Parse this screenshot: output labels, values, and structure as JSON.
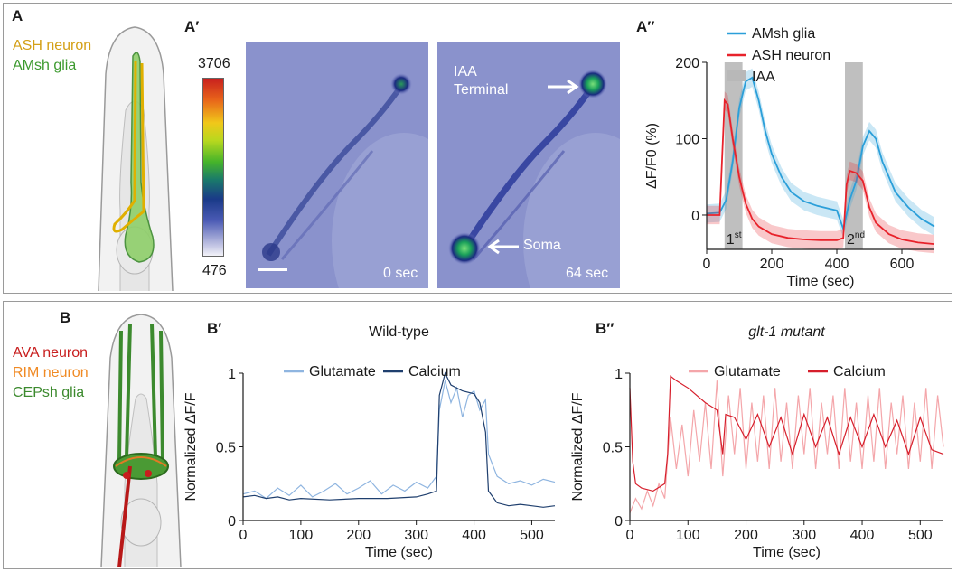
{
  "panelA": {
    "labels": {
      "a": "A",
      "a1": "A′",
      "a2": "A″"
    },
    "cartoon_labels": [
      {
        "text": "ASH neuron",
        "color": "#d4a017"
      },
      {
        "text": "AMsh glia",
        "color": "#3c9a2e"
      }
    ],
    "colorbar": {
      "max": "3706",
      "min": "476"
    },
    "image1": {
      "time": "0 sec"
    },
    "image2": {
      "time": "64 sec",
      "arrow1": "IAA\nTerminal",
      "arrow1_line1": "IAA",
      "arrow1_line2": "Terminal",
      "arrow2": "Soma"
    }
  },
  "panelB": {
    "labels": {
      "b": "B",
      "b1": "B′",
      "b2": "B″"
    },
    "cartoon_labels": [
      {
        "text": "AVA neuron",
        "color": "#c81e1e"
      },
      {
        "text": "RIM neuron",
        "color": "#f08a24"
      },
      {
        "text": "CEPsh glia",
        "color": "#3c8a2e"
      }
    ]
  },
  "chart_data": [
    {
      "id": "A2",
      "type": "line",
      "title": "",
      "xlabel": "Time (sec)",
      "ylabel": "ΔF/F0 (%)",
      "xlim": [
        0,
        700
      ],
      "ylim": [
        -45,
        200
      ],
      "xticks": [
        0,
        200,
        400,
        600
      ],
      "yticks": [
        0,
        100,
        200
      ],
      "legend": "top-right",
      "stimulus": {
        "name": "IAA",
        "intervals": [
          [
            55,
            110
          ],
          [
            425,
            480
          ]
        ],
        "color": "#b8b8b8"
      },
      "annotations": [
        {
          "text": "1",
          "sup": "st",
          "x": 55
        },
        {
          "text": "2",
          "sup": "nd",
          "x": 425
        }
      ],
      "series": [
        {
          "name": "AMsh glia",
          "color": "#2b9fd9",
          "band": true,
          "x": [
            0,
            40,
            60,
            80,
            100,
            120,
            140,
            160,
            180,
            200,
            230,
            260,
            300,
            340,
            380,
            400,
            420,
            440,
            460,
            480,
            500,
            520,
            540,
            580,
            620,
            660,
            700
          ],
          "y": [
            2,
            3,
            20,
            70,
            140,
            175,
            180,
            150,
            110,
            80,
            50,
            30,
            18,
            12,
            8,
            6,
            -18,
            20,
            45,
            90,
            110,
            100,
            70,
            30,
            10,
            -5,
            -15
          ]
        },
        {
          "name": "ASH neuron",
          "color": "#e8222b",
          "band": true,
          "x": [
            0,
            40,
            55,
            65,
            80,
            100,
            120,
            140,
            160,
            200,
            250,
            300,
            350,
            400,
            420,
            430,
            440,
            460,
            480,
            500,
            520,
            560,
            600,
            650,
            700
          ],
          "y": [
            0,
            0,
            150,
            145,
            100,
            50,
            15,
            -5,
            -15,
            -25,
            -30,
            -32,
            -33,
            -33,
            -30,
            40,
            58,
            55,
            45,
            10,
            -10,
            -25,
            -32,
            -36,
            -38
          ]
        }
      ]
    },
    {
      "id": "B1",
      "type": "line",
      "title": "Wild-type",
      "xlabel": "Time (sec)",
      "ylabel": "Normalized ΔF/F",
      "xlim": [
        0,
        540
      ],
      "ylim": [
        0,
        1
      ],
      "xticks": [
        0,
        100,
        200,
        300,
        400,
        500
      ],
      "yticks": [
        0,
        0.5,
        1
      ],
      "legend": "top",
      "series": [
        {
          "name": "Glutamate",
          "color": "#8fb5e0",
          "x": [
            0,
            20,
            40,
            60,
            80,
            100,
            120,
            140,
            160,
            180,
            200,
            220,
            240,
            260,
            280,
            300,
            320,
            335,
            340,
            350,
            360,
            370,
            380,
            390,
            400,
            410,
            420,
            425,
            440,
            460,
            480,
            500,
            520,
            540
          ],
          "y": [
            0.18,
            0.2,
            0.15,
            0.22,
            0.17,
            0.24,
            0.16,
            0.2,
            0.25,
            0.18,
            0.22,
            0.27,
            0.18,
            0.24,
            0.2,
            0.26,
            0.22,
            0.3,
            0.75,
            0.95,
            0.8,
            0.9,
            0.7,
            0.85,
            0.88,
            0.75,
            0.82,
            0.45,
            0.3,
            0.25,
            0.27,
            0.24,
            0.28,
            0.26
          ]
        },
        {
          "name": "Calcium",
          "color": "#1f3f6e",
          "x": [
            0,
            20,
            40,
            60,
            80,
            100,
            150,
            200,
            250,
            300,
            320,
            335,
            340,
            350,
            360,
            380,
            400,
            410,
            420,
            425,
            440,
            460,
            480,
            500,
            520,
            540
          ],
          "y": [
            0.16,
            0.17,
            0.15,
            0.16,
            0.14,
            0.15,
            0.14,
            0.15,
            0.15,
            0.16,
            0.18,
            0.2,
            0.85,
            1.0,
            0.92,
            0.88,
            0.86,
            0.8,
            0.6,
            0.2,
            0.12,
            0.1,
            0.11,
            0.1,
            0.09,
            0.1
          ]
        }
      ]
    },
    {
      "id": "B2",
      "type": "line",
      "title": "glt-1 mutant",
      "xlabel": "Time (sec)",
      "ylabel": "Normalized ΔF/F",
      "xlim": [
        0,
        540
      ],
      "ylim": [
        0,
        1
      ],
      "xticks": [
        0,
        100,
        200,
        300,
        400,
        500
      ],
      "yticks": [
        0,
        0.5,
        1
      ],
      "legend": "top",
      "series": [
        {
          "name": "Glutamate",
          "color": "#f4a6aa",
          "x": [
            0,
            10,
            20,
            30,
            40,
            50,
            60,
            70,
            80,
            90,
            100,
            110,
            120,
            130,
            140,
            150,
            160,
            170,
            180,
            190,
            200,
            210,
            220,
            230,
            240,
            250,
            260,
            270,
            280,
            290,
            300,
            310,
            320,
            330,
            340,
            350,
            360,
            370,
            380,
            390,
            400,
            410,
            420,
            430,
            440,
            450,
            460,
            470,
            480,
            490,
            500,
            510,
            520,
            530,
            540
          ],
          "y": [
            0.05,
            0.15,
            0.08,
            0.2,
            0.1,
            0.25,
            0.15,
            0.7,
            0.35,
            0.65,
            0.3,
            0.75,
            0.4,
            0.8,
            0.35,
            0.95,
            0.3,
            0.85,
            0.45,
            0.9,
            0.35,
            0.8,
            0.4,
            0.85,
            0.35,
            0.9,
            0.4,
            0.8,
            0.35,
            0.85,
            0.45,
            0.9,
            0.35,
            0.8,
            0.45,
            0.85,
            0.35,
            0.9,
            0.4,
            0.8,
            0.35,
            0.85,
            0.4,
            0.9,
            0.35,
            0.8,
            0.45,
            0.85,
            0.35,
            0.8,
            0.4,
            0.9,
            0.35,
            0.85,
            0.5
          ]
        },
        {
          "name": "Calcium",
          "color": "#d61e2b",
          "x": [
            0,
            5,
            10,
            20,
            40,
            60,
            65,
            70,
            80,
            100,
            130,
            150,
            160,
            165,
            180,
            200,
            220,
            240,
            260,
            280,
            300,
            320,
            340,
            360,
            380,
            400,
            420,
            440,
            460,
            480,
            500,
            520,
            540
          ],
          "y": [
            0.9,
            0.4,
            0.25,
            0.22,
            0.2,
            0.25,
            0.45,
            0.98,
            0.95,
            0.9,
            0.8,
            0.75,
            0.45,
            0.72,
            0.7,
            0.55,
            0.72,
            0.5,
            0.7,
            0.45,
            0.72,
            0.5,
            0.7,
            0.45,
            0.7,
            0.5,
            0.72,
            0.5,
            0.68,
            0.45,
            0.7,
            0.48,
            0.45
          ]
        }
      ]
    }
  ]
}
